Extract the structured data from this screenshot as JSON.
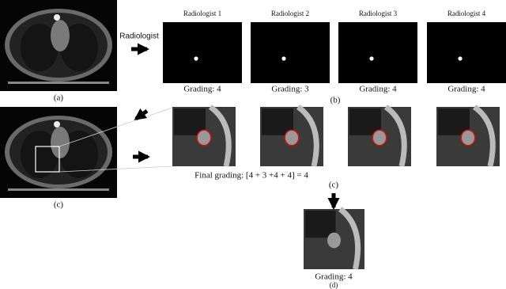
{
  "panel_a": {
    "label": "(a)"
  },
  "arrow_label": "Radiologist",
  "radiologists": [
    {
      "name": "Radiologist 1",
      "grading": "Grading: 4"
    },
    {
      "name": "Radiologist 2",
      "grading": "Grading: 3"
    },
    {
      "name": "Radiologist 3",
      "grading": "Grading: 4"
    },
    {
      "name": "Radiologist 4",
      "grading": "Grading: 4"
    }
  ],
  "panel_b": {
    "label": "(b)"
  },
  "panel_c": {
    "label": "(c)"
  },
  "final_grading": "Final grading: [4 + 3 +4 + 4] = 4",
  "panel_c2": {
    "label": "(c)"
  },
  "panel_d": {
    "grading": "Grading: 4",
    "label": "(d)"
  }
}
